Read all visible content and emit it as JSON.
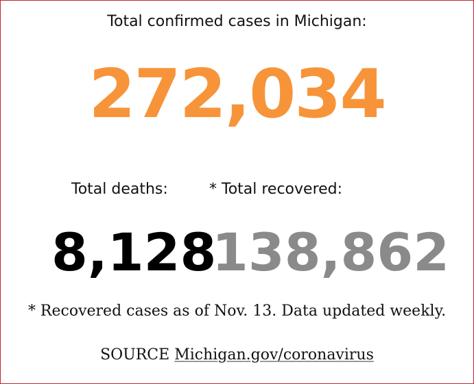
{
  "header": {
    "title": "Total confirmed cases in Michigan:"
  },
  "total_cases": {
    "value": "272,034"
  },
  "stats": [
    {
      "label": "Total deaths:",
      "value": "8,128"
    },
    {
      "label": "* Total recovered:",
      "value": "138,862"
    }
  ],
  "footnote": "* Recovered cases as of Nov. 13. Data updated weekly.",
  "source": {
    "label": "SOURCE",
    "link": "Michigan.gov/coronavirus"
  }
}
